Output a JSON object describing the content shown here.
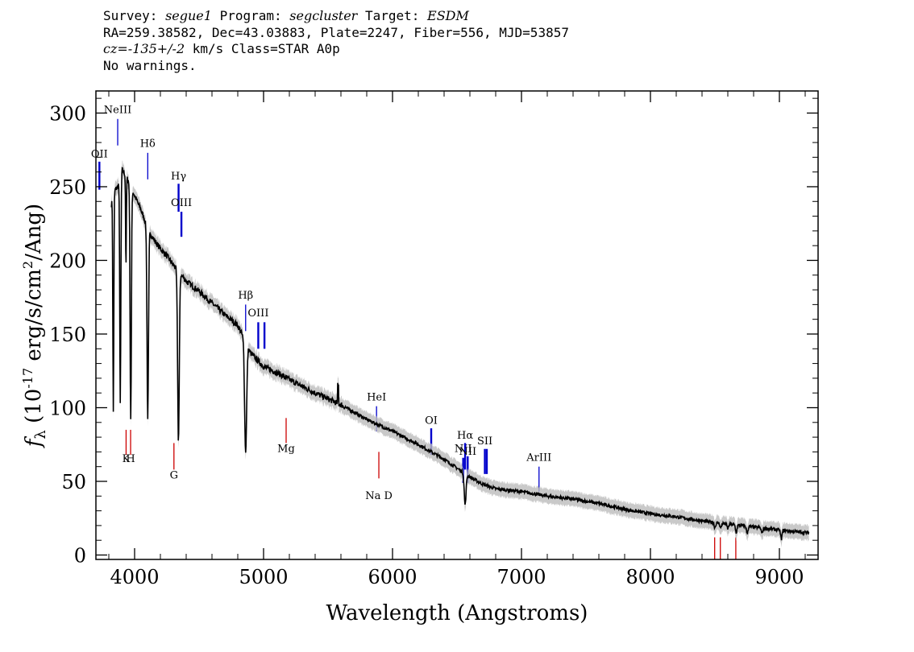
{
  "header": {
    "line1": {
      "survey_label": "Survey: ",
      "survey": "segue1",
      "program_label": " Program: ",
      "program": "segcluster",
      "target_label": " Target: ",
      "target": "ESDM"
    },
    "line2": "RA=259.38582, Dec=43.03883, Plate=2247, Fiber=556, MJD=53857",
    "line3": {
      "cz": "cz=-135+/-2",
      "rest": " km/s Class=STAR A0p"
    },
    "line4": "No warnings."
  },
  "chart_data": {
    "type": "line",
    "xlabel": "Wavelength (Angstroms)",
    "ylabel": "f_λ (10^-17 erg/s/cm^2/Ang)",
    "xlim": [
      3700,
      9300
    ],
    "ylim": [
      -3,
      315
    ],
    "x_ticks": [
      4000,
      5000,
      6000,
      7000,
      8000,
      9000
    ],
    "y_ticks": [
      0,
      50,
      100,
      150,
      200,
      250,
      300
    ],
    "x_tick_labels": [
      "4000",
      "5000",
      "6000",
      "7000",
      "8000",
      "9000"
    ],
    "y_tick_labels": [
      "0",
      "50",
      "100",
      "150",
      "200",
      "250",
      "300"
    ],
    "grid": false,
    "series": [
      {
        "color": "#000000",
        "error_band_color": "#bbbbbb",
        "continuum": [
          [
            3820,
            238
          ],
          [
            3850,
            248
          ],
          [
            3870,
            250
          ],
          [
            3900,
            262
          ],
          [
            3930,
            258
          ],
          [
            3960,
            252
          ],
          [
            4000,
            244
          ],
          [
            4050,
            234
          ],
          [
            4100,
            222
          ],
          [
            4150,
            214
          ],
          [
            4200,
            208
          ],
          [
            4250,
            203
          ],
          [
            4300,
            197
          ],
          [
            4400,
            186
          ],
          [
            4500,
            179
          ],
          [
            4600,
            171
          ],
          [
            4700,
            163
          ],
          [
            4800,
            156
          ],
          [
            4900,
            137
          ],
          [
            5000,
            128
          ],
          [
            5100,
            124
          ],
          [
            5200,
            119
          ],
          [
            5400,
            110
          ],
          [
            5600,
            102
          ],
          [
            5800,
            92
          ],
          [
            6000,
            84
          ],
          [
            6200,
            75
          ],
          [
            6400,
            65
          ],
          [
            6500,
            59
          ],
          [
            6600,
            53
          ],
          [
            6700,
            48
          ],
          [
            6800,
            45
          ],
          [
            7000,
            43
          ],
          [
            7200,
            40
          ],
          [
            7400,
            38
          ],
          [
            7600,
            35
          ],
          [
            7800,
            31
          ],
          [
            8000,
            28
          ],
          [
            8200,
            26
          ],
          [
            8400,
            23
          ],
          [
            8600,
            21
          ],
          [
            8800,
            19
          ],
          [
            9000,
            17
          ],
          [
            9230,
            15
          ]
        ],
        "absorption_lines": [
          {
            "x": 3835,
            "depth": 0.6,
            "width": 5
          },
          {
            "x": 3889,
            "depth": 0.6,
            "width": 6
          },
          {
            "x": 3933,
            "depth": 0.25,
            "width": 4
          },
          {
            "x": 3970,
            "depth": 0.63,
            "width": 7
          },
          {
            "x": 4102,
            "depth": 0.58,
            "width": 8
          },
          {
            "x": 4340,
            "depth": 0.6,
            "width": 9
          },
          {
            "x": 4861,
            "depth": 0.52,
            "width": 11
          },
          {
            "x": 6563,
            "depth": 0.38,
            "width": 10
          },
          {
            "x": 8500,
            "depth": 0.15,
            "width": 8
          },
          {
            "x": 8545,
            "depth": 0.15,
            "width": 8
          },
          {
            "x": 8600,
            "depth": 0.15,
            "width": 8
          },
          {
            "x": 8665,
            "depth": 0.25,
            "width": 8
          },
          {
            "x": 8750,
            "depth": 0.25,
            "width": 8
          },
          {
            "x": 8865,
            "depth": 0.2,
            "width": 8
          },
          {
            "x": 9015,
            "depth": 0.35,
            "width": 8
          }
        ],
        "spikes": [
          {
            "x": 5578,
            "height": 12
          }
        ]
      }
    ],
    "emission_lines": [
      {
        "label": "OII",
        "x": 3727,
        "y_bottom": 248,
        "y_top": 267,
        "label_y": 270,
        "color": "#0000cc",
        "thick": true
      },
      {
        "label": "NeIII",
        "x": 3869,
        "y_bottom": 278,
        "y_top": 296,
        "label_y": 300,
        "color": "#0000cc",
        "thick": false
      },
      {
        "label": "Hδ",
        "x": 4102,
        "y_bottom": 255,
        "y_top": 273,
        "label_y": 277,
        "color": "#0000cc",
        "thick": false
      },
      {
        "label": "Hγ",
        "x": 4341,
        "y_bottom": 233,
        "y_top": 252,
        "label_y": 255,
        "color": "#0000cc",
        "thick": true
      },
      {
        "label": "OIII",
        "x": 4363,
        "y_bottom": 216,
        "y_top": 233,
        "label_y": 237,
        "color": "#0000cc",
        "thick": true
      },
      {
        "label": "Hβ",
        "x": 4861,
        "y_bottom": 152,
        "y_top": 170,
        "label_y": 174,
        "color": "#0000cc",
        "thick": false
      },
      {
        "label": "OIII",
        "x": 4959,
        "y_bottom": 140,
        "y_top": 158,
        "label_y": 162,
        "color": "#0000cc",
        "thick": true
      },
      {
        "label": "",
        "x": 5007,
        "y_bottom": 140,
        "y_top": 158,
        "color": "#0000cc",
        "thick": true
      },
      {
        "label": "HeI",
        "x": 5876,
        "y_bottom": 84,
        "y_top": 101,
        "label_y": 105,
        "color": "#0000cc",
        "thick": false
      },
      {
        "label": "OI",
        "x": 6300,
        "y_bottom": 68,
        "y_top": 86,
        "label_y": 89,
        "color": "#0000cc",
        "thick": true
      },
      {
        "label": "NII",
        "x": 6548,
        "y_bottom": 49,
        "y_top": 66,
        "label_y": 70,
        "color": "#0000cc",
        "thick": true
      },
      {
        "label": "Hα",
        "x": 6563,
        "y_bottom": 58,
        "y_top": 76,
        "label_y": 79,
        "color": "#0000cc",
        "thick": true
      },
      {
        "label": "NII",
        "x": 6583,
        "y_bottom": 49,
        "y_top": 67,
        "label_y": 68,
        "color": "#0000cc",
        "thick": true
      },
      {
        "label": "SII",
        "x": 6716,
        "y_bottom": 55,
        "y_top": 72,
        "label_y": 75,
        "color": "#0000cc",
        "thick": true
      },
      {
        "label": "",
        "x": 6731,
        "y_bottom": 55,
        "y_top": 72,
        "color": "#0000cc",
        "thick": true
      },
      {
        "label": "ArIII",
        "x": 7136,
        "y_bottom": 43,
        "y_top": 60,
        "label_y": 64,
        "color": "#0000cc",
        "thick": false
      }
    ],
    "absorption_markers": [
      {
        "label": "K",
        "x": 3934,
        "y_top": 85,
        "y_bottom": 68,
        "label_y": 63,
        "color": "#cc0000"
      },
      {
        "label": "H",
        "x": 3969,
        "y_top": 85,
        "y_bottom": 68,
        "label_y": 63,
        "color": "#cc0000"
      },
      {
        "label": "G",
        "x": 4305,
        "y_top": 76,
        "y_bottom": 58,
        "label_y": 52,
        "color": "#cc0000"
      },
      {
        "label": "Mg",
        "x": 5175,
        "y_top": 93,
        "y_bottom": 76,
        "label_y": 70,
        "color": "#cc0000"
      },
      {
        "label": "Na  D",
        "x": 5894,
        "y_top": 70,
        "y_bottom": 52,
        "label_y": 38,
        "color": "#cc0000"
      },
      {
        "label": "",
        "x": 8498,
        "y_top": 12,
        "y_bottom": -3,
        "color": "#cc0000"
      },
      {
        "label": "",
        "x": 8542,
        "y_top": 12,
        "y_bottom": -3,
        "color": "#cc0000"
      },
      {
        "label": "",
        "x": 8662,
        "y_top": 12,
        "y_bottom": -3,
        "color": "#cc0000"
      }
    ]
  }
}
